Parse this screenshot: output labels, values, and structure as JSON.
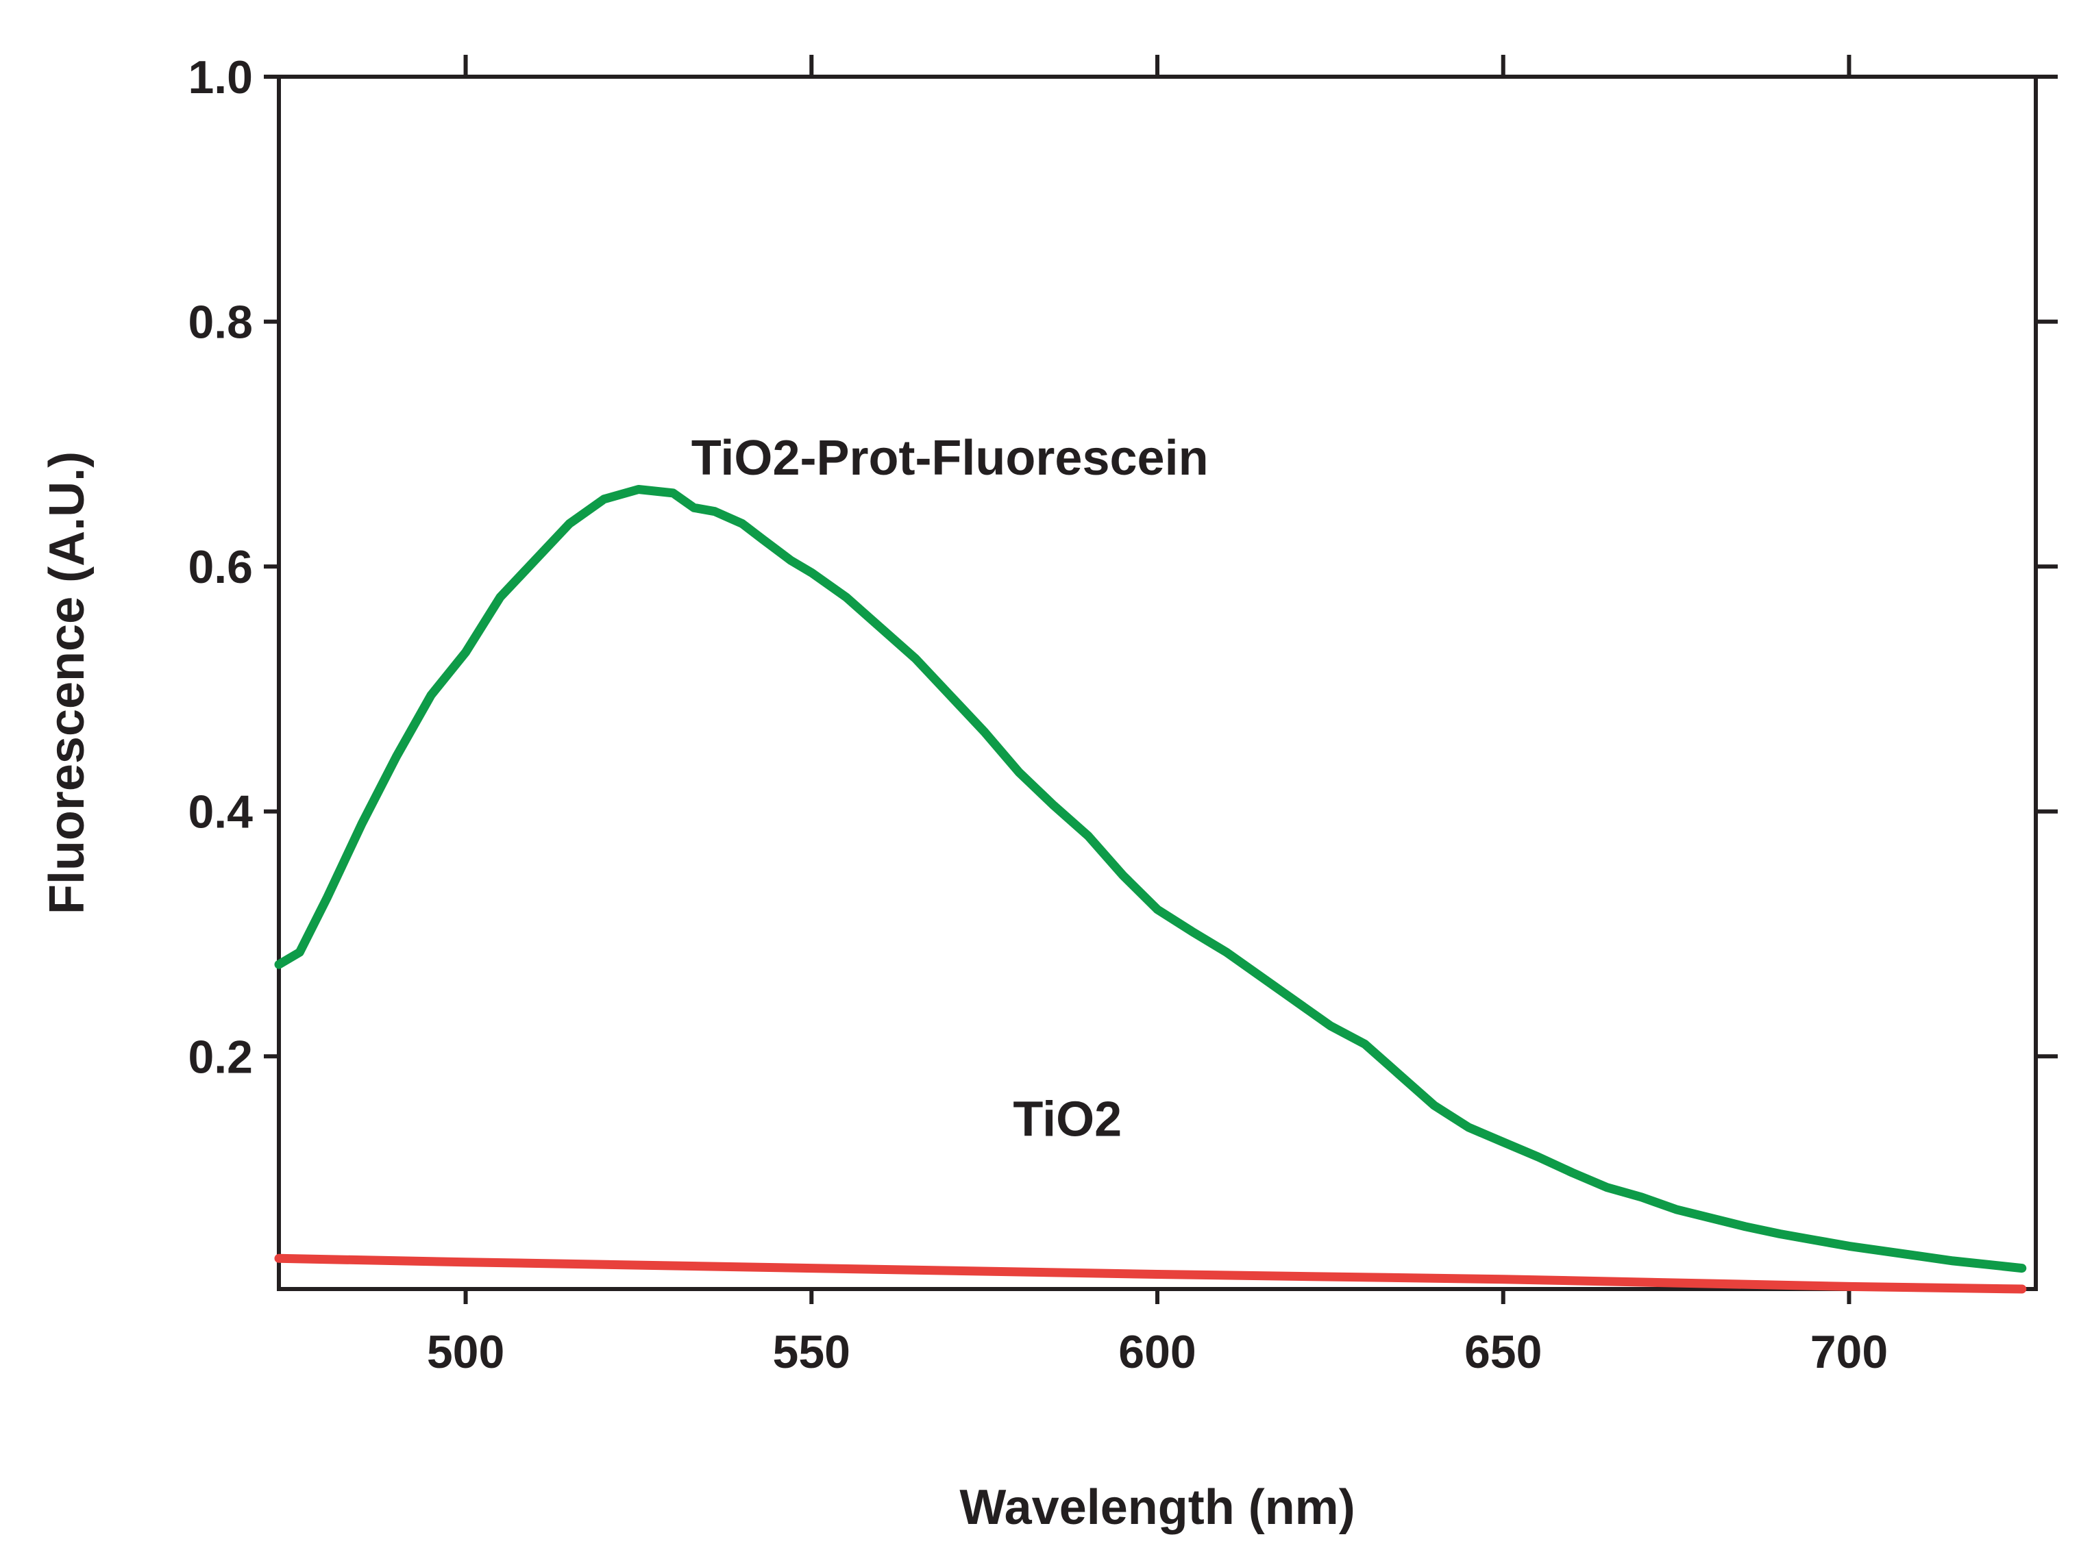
{
  "chart_data": {
    "type": "line",
    "xlabel": "Wavelength (nm)",
    "ylabel": "Fluorescence (A.U.)",
    "xlim": [
      473,
      727
    ],
    "ylim": [
      0.01,
      1.0
    ],
    "x_ticks": [
      500,
      550,
      600,
      650,
      700
    ],
    "x_tick_labels": [
      "500",
      "550",
      "600",
      "650",
      "700"
    ],
    "y_ticks": [
      0.2,
      0.4,
      0.6,
      0.8,
      1.0
    ],
    "y_tick_labels": [
      "0.2",
      "0.4",
      "0.6",
      "0.8",
      "1.0"
    ],
    "grid": false,
    "legend": "none",
    "series": [
      {
        "name": "TiO2-Prot-Fluorescein",
        "color": "#0e9b48",
        "x": [
          473,
          476,
          480,
          485,
          490,
          495,
          500,
          505,
          510,
          515,
          520,
          525,
          530,
          533,
          536,
          540,
          543,
          547,
          550,
          555,
          560,
          565,
          570,
          575,
          580,
          585,
          590,
          595,
          600,
          605,
          610,
          615,
          620,
          625,
          630,
          635,
          640,
          645,
          650,
          655,
          660,
          665,
          670,
          675,
          680,
          685,
          690,
          695,
          700,
          705,
          710,
          715,
          720,
          725
        ],
        "y": [
          0.275,
          0.285,
          0.33,
          0.39,
          0.445,
          0.495,
          0.53,
          0.575,
          0.605,
          0.635,
          0.655,
          0.663,
          0.66,
          0.648,
          0.645,
          0.635,
          0.622,
          0.605,
          0.595,
          0.575,
          0.55,
          0.525,
          0.495,
          0.465,
          0.432,
          0.405,
          0.38,
          0.348,
          0.32,
          0.302,
          0.285,
          0.265,
          0.245,
          0.225,
          0.21,
          0.185,
          0.16,
          0.142,
          0.13,
          0.118,
          0.105,
          0.093,
          0.085,
          0.075,
          0.068,
          0.061,
          0.055,
          0.05,
          0.045,
          0.041,
          0.037,
          0.033,
          0.03,
          0.027
        ]
      },
      {
        "name": "TiO2",
        "color": "#e8413c",
        "x": [
          473,
          500,
          550,
          600,
          650,
          700,
          725
        ],
        "y": [
          0.035,
          0.032,
          0.027,
          0.022,
          0.018,
          0.012,
          0.01
        ]
      }
    ],
    "annotations": [
      {
        "text": "TiO2-Prot-Fluorescein",
        "x": 570,
        "y": 0.675
      },
      {
        "text": "TiO2",
        "x": 587,
        "y": 0.135
      }
    ]
  }
}
